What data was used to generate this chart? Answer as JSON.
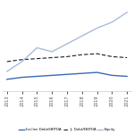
{
  "years": [
    2013,
    2014,
    2015,
    2016,
    2017,
    2018,
    2019,
    2020,
    2021
  ],
  "senior_lien": [
    3.6,
    3.7,
    3.75,
    3.8,
    3.85,
    3.9,
    3.95,
    3.8,
    3.75
  ],
  "jr_debt": [
    4.5,
    4.6,
    4.65,
    4.7,
    4.75,
    4.85,
    4.9,
    4.75,
    4.7
  ],
  "equity": [
    4.0,
    4.5,
    5.2,
    5.0,
    5.4,
    5.8,
    6.2,
    6.5,
    7.0
  ],
  "senior_color": "#3a6ab5",
  "jr_color": "#1a1a2e",
  "equity_color": "#a8bcd8",
  "legend_labels": [
    "1st-lien Debt/EBITDA",
    "Jr. Debt/EBITDA",
    "Equity"
  ],
  "ylim": [
    3.0,
    7.5
  ],
  "background": "#ffffff"
}
